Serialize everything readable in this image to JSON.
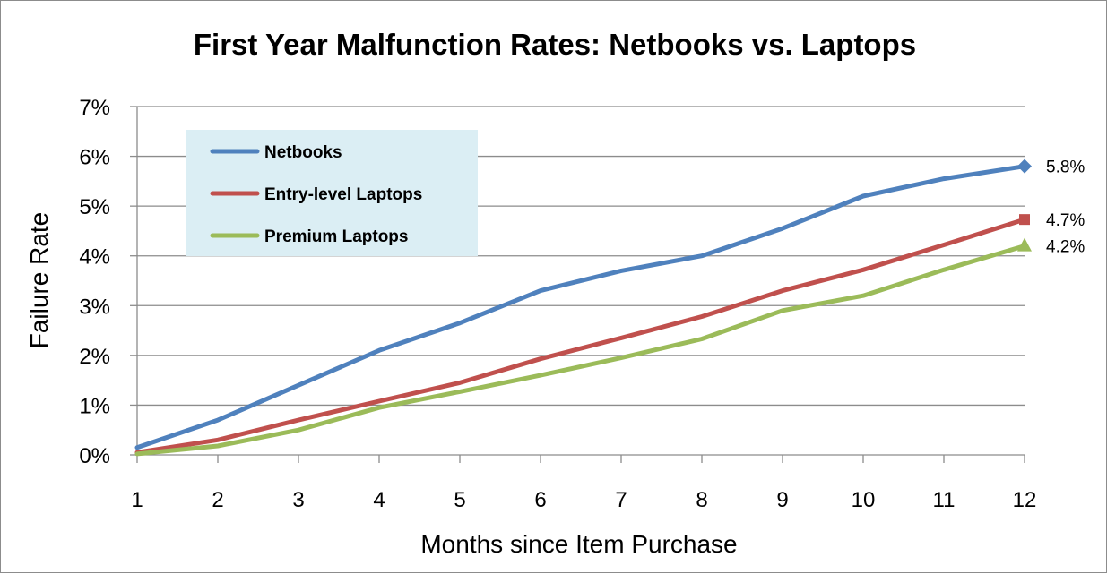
{
  "chart_data": {
    "type": "line",
    "title": "First Year Malfunction Rates: Netbooks vs. Laptops",
    "xlabel": "Months since Item Purchase",
    "ylabel": "Failure Rate",
    "x": [
      1,
      2,
      3,
      4,
      5,
      6,
      7,
      8,
      9,
      10,
      11,
      12
    ],
    "ylim": [
      0,
      7
    ],
    "yticks": [
      "0%",
      "1%",
      "2%",
      "3%",
      "4%",
      "5%",
      "6%",
      "7%"
    ],
    "grid": "horizontal",
    "legend_position": "top-left",
    "series": [
      {
        "name": "Netbooks",
        "color": "#4f81bd",
        "marker": "diamond",
        "values": [
          0.15,
          0.7,
          1.4,
          2.1,
          2.65,
          3.3,
          3.7,
          4.0,
          4.55,
          5.2,
          5.55,
          5.8
        ],
        "end_label": "5.8%"
      },
      {
        "name": "Entry-level Laptops",
        "color": "#c0504d",
        "marker": "square",
        "values": [
          0.05,
          0.3,
          0.7,
          1.08,
          1.45,
          1.93,
          2.35,
          2.78,
          3.3,
          3.72,
          4.22,
          4.73
        ],
        "end_label": "4.7%"
      },
      {
        "name": "Premium Laptops",
        "color": "#9bbb59",
        "marker": "triangle",
        "values": [
          0.02,
          0.18,
          0.5,
          0.95,
          1.27,
          1.6,
          1.95,
          2.33,
          2.9,
          3.2,
          3.72,
          4.2
        ],
        "end_label": "4.2%"
      }
    ]
  },
  "colors": {
    "legend_background": "#dbeef4",
    "grid": "#8c8c8c",
    "axis": "#8c8c8c"
  }
}
